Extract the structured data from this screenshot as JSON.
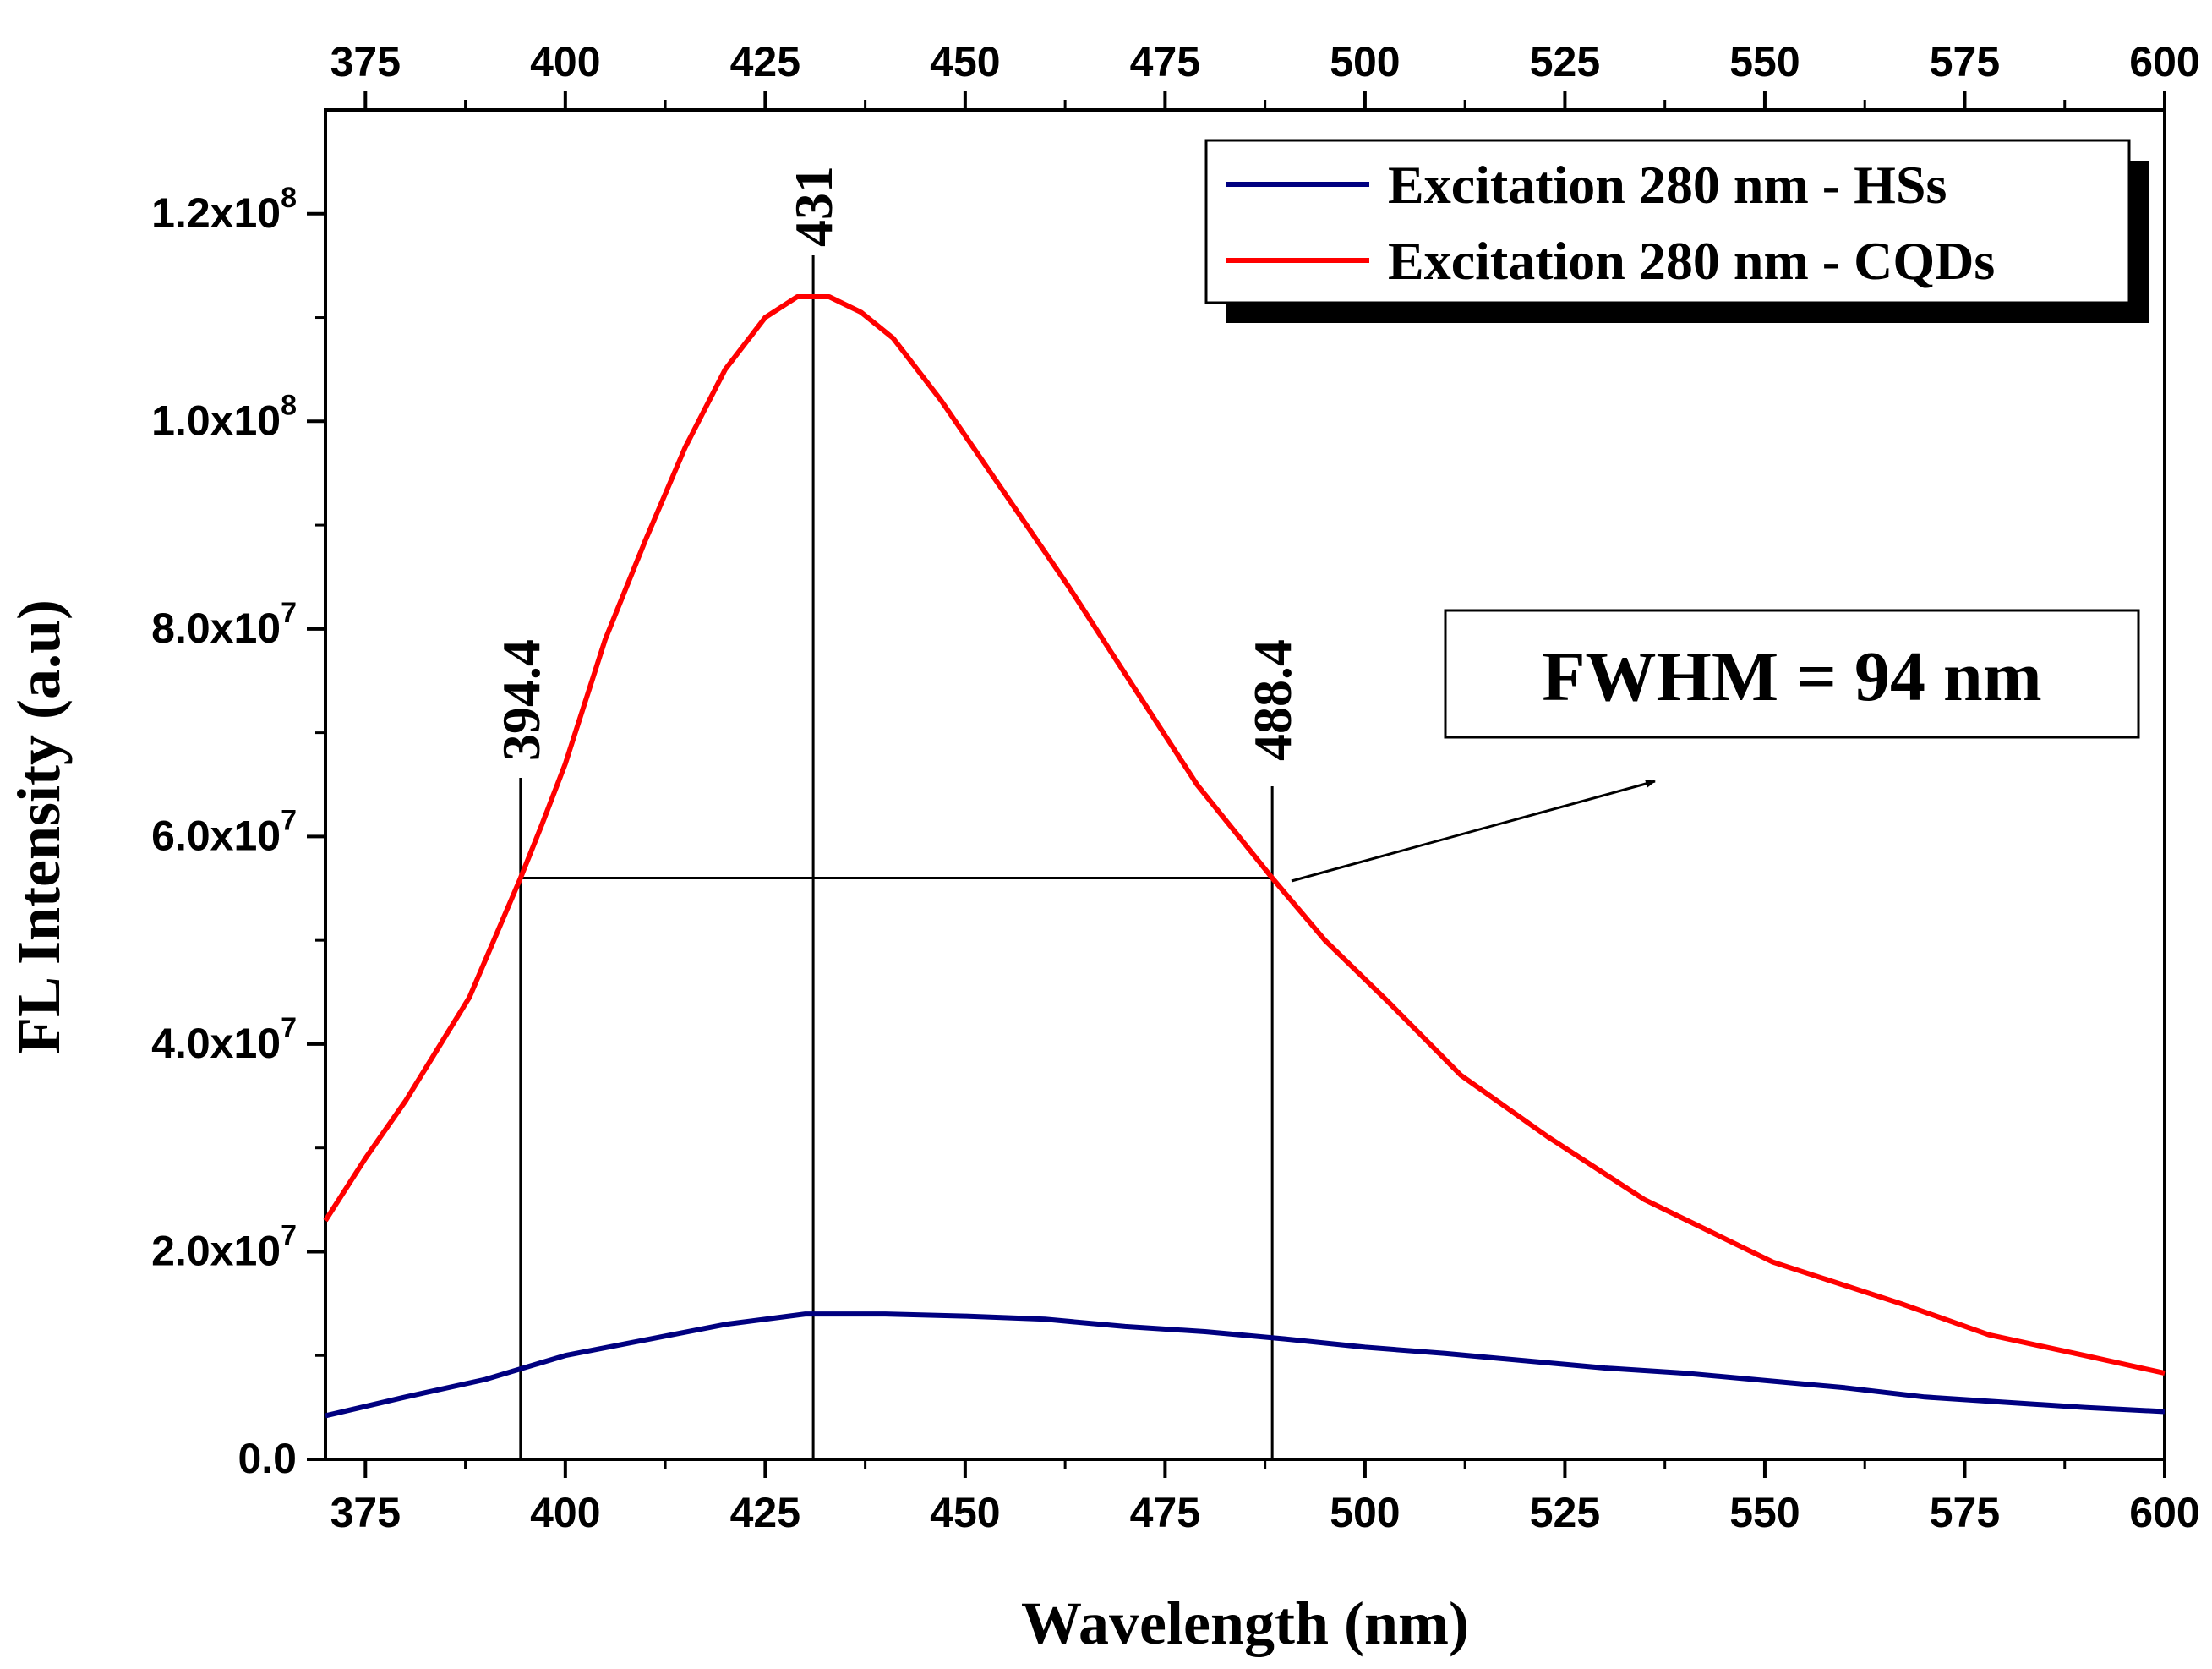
{
  "chart_data": {
    "type": "line",
    "xlabel": "Wavelength (nm)",
    "ylabel": "FL Intensity (a.u)",
    "xlim": [
      370,
      600
    ],
    "ylim": [
      0,
      130000000
    ],
    "x_ticks": [
      "375",
      "400",
      "425",
      "450",
      "475",
      "500",
      "525",
      "550",
      "575",
      "600"
    ],
    "y_ticks": [
      {
        "mantissa": "0.0",
        "exp": ""
      },
      {
        "mantissa": "2.0x10",
        "exp": "7"
      },
      {
        "mantissa": "4.0x10",
        "exp": "7"
      },
      {
        "mantissa": "6.0x10",
        "exp": "7"
      },
      {
        "mantissa": "8.0x10",
        "exp": "7"
      },
      {
        "mantissa": "1.0x10",
        "exp": "8"
      },
      {
        "mantissa": "1.2x10",
        "exp": "8"
      }
    ],
    "legend": {
      "position": "top-right",
      "entries": [
        "Excitation 280 nm - HSs",
        "Excitation 280 nm - CQDs"
      ]
    },
    "series": [
      {
        "name": "Excitation 280 nm - HSs",
        "color": "#000080",
        "x": [
          370,
          380,
          390,
          400,
          410,
          420,
          430,
          440,
          450,
          460,
          470,
          480,
          490,
          500,
          510,
          520,
          530,
          540,
          550,
          560,
          570,
          580,
          590,
          600
        ],
        "y": [
          4200000,
          6000000,
          7700000,
          10000000,
          11500000,
          13000000,
          14000000,
          14000000,
          13800000,
          13500000,
          12800000,
          12300000,
          11600000,
          10800000,
          10200000,
          9500000,
          8800000,
          8300000,
          7600000,
          6900000,
          6000000,
          5500000,
          5000000,
          4600000
        ]
      },
      {
        "name": "Excitation 280 nm - CQDs",
        "color": "#ff0000",
        "x": [
          370,
          375,
          380,
          388,
          394.4,
          397,
          400,
          405,
          410,
          415,
          420,
          425,
          429,
          433,
          437,
          441,
          447,
          455,
          463,
          471,
          479,
          488.4,
          495,
          503,
          512,
          523,
          535,
          551,
          567,
          578,
          590,
          600
        ],
        "y": [
          23000000,
          29000000,
          34500000,
          44500000,
          56000000,
          61000000,
          67000000,
          79000000,
          88500000,
          97500000,
          105000000,
          110000000,
          112000000,
          112000000,
          110500000,
          108000000,
          102000000,
          93000000,
          84000000,
          74500000,
          65000000,
          56000000,
          50000000,
          44000000,
          37000000,
          31000000,
          25000000,
          19000000,
          15000000,
          12000000,
          10000000,
          8300000
        ]
      }
    ],
    "annotations": {
      "peak": {
        "label": "431",
        "x": 431
      },
      "left_half_max": {
        "label": "394.4",
        "x": 394.4
      },
      "right_half_max": {
        "label": "488.4",
        "x": 488.4
      },
      "half_max_y": 56000000,
      "fwhm_label": "FWHM = 94 nm"
    }
  }
}
